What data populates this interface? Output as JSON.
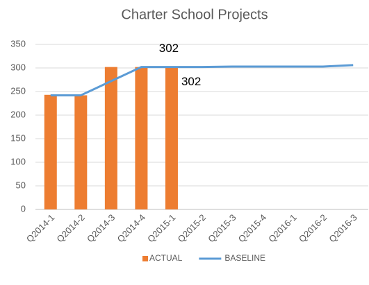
{
  "chart_data": {
    "type": "bar",
    "title": "Charter School Projects",
    "categories": [
      "Q2014-1",
      "Q2014-2",
      "Q2014-3",
      "Q2014-4",
      "Q2015-1",
      "Q2015-2",
      "Q2015-3",
      "Q2015-4",
      "Q2016-1",
      "Q2016-2",
      "Q2016-3"
    ],
    "series": [
      {
        "name": "ACTUAL",
        "type": "bar",
        "color": "#ed7d31",
        "values": [
          243,
          242,
          302,
          302,
          302,
          null,
          null,
          null,
          null,
          null,
          null
        ]
      },
      {
        "name": "BASELINE",
        "type": "line",
        "color": "#5b9bd5",
        "values": [
          242,
          242,
          272,
          302,
          302,
          302,
          303,
          303,
          303,
          303,
          306
        ]
      }
    ],
    "ylim": [
      0,
      350
    ],
    "yticks": [
      0,
      50,
      100,
      150,
      200,
      250,
      300,
      350
    ],
    "grid": true,
    "legend": "bottom"
  }
}
